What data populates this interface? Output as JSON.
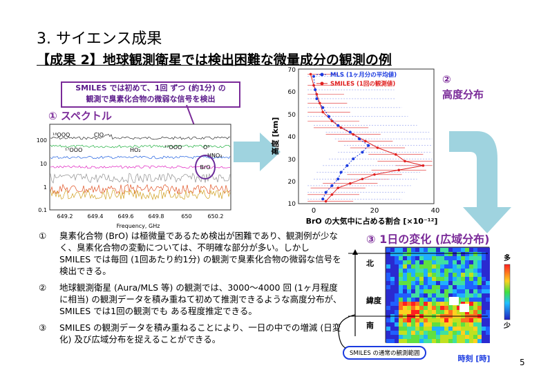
{
  "title": "3. サイエンス成果",
  "subtitle": "【成果 2】地球観測衛星では検出困難な微量成分の観測の例",
  "callout": {
    "line1": "SMILES では初めて、1回 ずつ (約1分) の",
    "line2": "観測で臭素化合物の微弱な信号を検出"
  },
  "sections": {
    "spectrum": "① スペクトル",
    "altitude": "②\n高度分布",
    "altitude_num": "②",
    "altitude_label": "高度分布",
    "daily": "③ 1日の変化 (広域分布)"
  },
  "spectrum_chart": {
    "xlabel": "Frequency, GHz",
    "xticks": [
      "649.2",
      "649.4",
      "649.6",
      "649.8",
      "650",
      "650.2"
    ],
    "yticks": [
      "100",
      "10",
      "1",
      "0.1"
    ],
    "species": [
      "¹⁸OOO",
      "ClO",
      "¹⁷OOO",
      "HO₂",
      "¹⁷OOO",
      "O³",
      "HNO₃",
      "BrO"
    ]
  },
  "profile_chart": {
    "ylabel": "高度 [km]",
    "xlabel": "BrO の大気中に占める割合 [×10⁻¹²]",
    "yticks": [
      "70",
      "60",
      "50",
      "40",
      "30",
      "20",
      "10"
    ],
    "xticks": [
      "0",
      "20",
      "40"
    ],
    "legend": [
      "MLS (1ヶ月分の平均値)",
      "SMILES (1回の観測値)"
    ],
    "colors": {
      "mls": "#1a3ae0",
      "smiles": "#e02020"
    }
  },
  "map_chart": {
    "ylabel_south": "南",
    "ylabel_lat": "緯度",
    "ylabel_north": "北",
    "xlabel": "時刻 [時]",
    "scale_top": "多",
    "scale_bottom": "少",
    "range_label": "SMILES の通常の観測範囲"
  },
  "points": [
    {
      "num": "①",
      "text": "臭素化合物 (BrO) は極微量であるため検出が困難であり、観測例が少なく、臭素化合物の変動については、不明確な部分が多い。しかし SMILES では毎回 (1回あたり約1分) の観測で臭素化合物の微弱な信号を検出できる。"
    },
    {
      "num": "②",
      "text": "地球観測衛星 (Aura/MLS 等) の観測では、3000～4000 回 (1ヶ月程度に相当) の観測データを積み重ねて初めて推測できるような高度分布が、SMILES では1回の観測でも ある程度推定できる。"
    },
    {
      "num": "③",
      "text": "SMILES の観測データを積み重ねることにより、一日の中での増減 (日変化) 及び広域分布を捉えることができる。"
    }
  ],
  "page_number": "5"
}
